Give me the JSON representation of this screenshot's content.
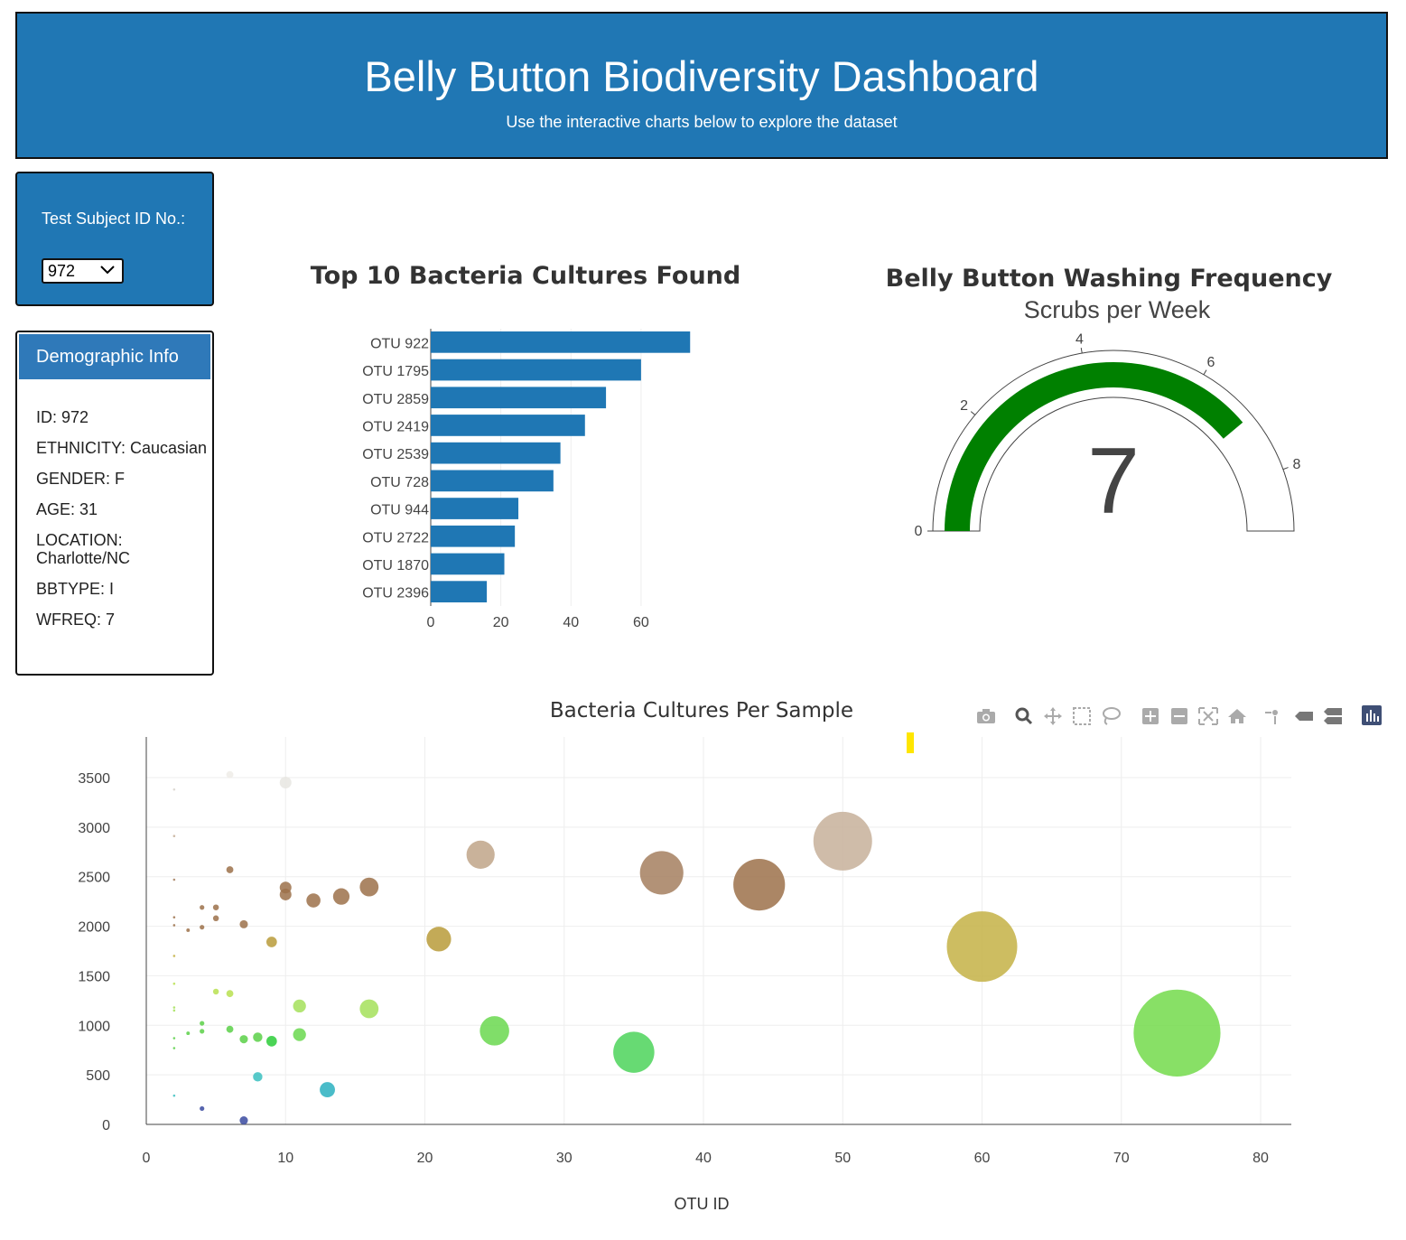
{
  "header": {
    "title": "Belly Button Biodiversity Dashboard",
    "subtitle": "Use the interactive charts below to explore the dataset"
  },
  "selector": {
    "label": "Test Subject ID No.:",
    "selected": "972"
  },
  "demographics": {
    "title": "Demographic Info",
    "rows": [
      "ID: 972",
      "ETHNICITY: Caucasian",
      "GENDER: F",
      "AGE: 31",
      "LOCATION: Charlotte/NC",
      "BBTYPE: I",
      "WFREQ: 7"
    ]
  },
  "colors": {
    "primary": "#2077b4",
    "bar": "#1f77b4",
    "gauge": "#008000",
    "highlight": "#ffe600"
  },
  "toolbar": {
    "icons": [
      "camera-icon",
      "zoom-icon",
      "pan-icon",
      "box-select-icon",
      "lasso-icon",
      "zoom-in-icon",
      "zoom-out-icon",
      "autoscale-icon",
      "reset-axes-icon",
      "spike-lines-icon",
      "hover-closest-icon",
      "hover-compare-icon",
      "plotly-logo-icon"
    ]
  },
  "chart_data": [
    {
      "type": "bar",
      "orientation": "horizontal",
      "title": "Top 10 Bacteria Cultures Found",
      "categories": [
        "OTU 922",
        "OTU 1795",
        "OTU 2859",
        "OTU 2419",
        "OTU 2539",
        "OTU 728",
        "OTU 944",
        "OTU 2722",
        "OTU 1870",
        "OTU 2396"
      ],
      "values": [
        74,
        60,
        50,
        44,
        37,
        35,
        25,
        24,
        21,
        16
      ],
      "xticks": [
        0,
        20,
        40,
        60
      ],
      "xlim": [
        0,
        76
      ]
    },
    {
      "type": "gauge",
      "title": "Belly Button Washing Frequency",
      "subtitle": "Scrubs per Week",
      "value": 7,
      "range": [
        0,
        9
      ],
      "ticks": [
        0,
        2,
        4,
        6,
        8
      ],
      "bar_range": [
        0,
        7
      ]
    },
    {
      "type": "scatter",
      "title": "Bacteria Cultures Per Sample",
      "xlabel": "OTU ID",
      "ylabel": "",
      "xlim": [
        0,
        82
      ],
      "ylim": [
        0,
        3800
      ],
      "xticks": [
        0,
        10,
        20,
        30,
        40,
        50,
        60,
        70,
        80
      ],
      "yticks": [
        0,
        500,
        1000,
        1500,
        2000,
        2500,
        3000,
        3500
      ],
      "points": [
        {
          "x": 74,
          "y": 922,
          "size": 74,
          "color": "#73db4b"
        },
        {
          "x": 60,
          "y": 1795,
          "size": 60,
          "color": "#c4b245"
        },
        {
          "x": 50,
          "y": 2859,
          "size": 50,
          "color": "#c7b09a"
        },
        {
          "x": 44,
          "y": 2419,
          "size": 44,
          "color": "#9c714a"
        },
        {
          "x": 37,
          "y": 2539,
          "size": 37,
          "color": "#a57f5f"
        },
        {
          "x": 35,
          "y": 728,
          "size": 35,
          "color": "#4cd45a"
        },
        {
          "x": 25,
          "y": 944,
          "size": 25,
          "color": "#6ad84f"
        },
        {
          "x": 24,
          "y": 2722,
          "size": 24,
          "color": "#c0a488"
        },
        {
          "x": 21,
          "y": 1870,
          "size": 21,
          "color": "#b89b3a"
        },
        {
          "x": 16,
          "y": 2396,
          "size": 16,
          "color": "#9c714a"
        },
        {
          "x": 16,
          "y": 1167,
          "size": 16,
          "color": "#a4e05a"
        },
        {
          "x": 14,
          "y": 2300,
          "size": 14,
          "color": "#9c714a"
        },
        {
          "x": 13,
          "y": 350,
          "size": 13,
          "color": "#2ab0c0"
        },
        {
          "x": 12,
          "y": 2260,
          "size": 12,
          "color": "#9c714a"
        },
        {
          "x": 11,
          "y": 1195,
          "size": 11,
          "color": "#a4e05a"
        },
        {
          "x": 11,
          "y": 906,
          "size": 11,
          "color": "#6ad84f"
        },
        {
          "x": 10,
          "y": 3450,
          "size": 10,
          "color": "#e8e6e2"
        },
        {
          "x": 10,
          "y": 2390,
          "size": 10,
          "color": "#9c714a"
        },
        {
          "x": 10,
          "y": 2320,
          "size": 10,
          "color": "#9c714a"
        },
        {
          "x": 9,
          "y": 1841,
          "size": 9,
          "color": "#b89b3a"
        },
        {
          "x": 9,
          "y": 840,
          "size": 9,
          "color": "#2ccc38"
        },
        {
          "x": 8,
          "y": 880,
          "size": 8,
          "color": "#5ad048"
        },
        {
          "x": 8,
          "y": 480,
          "size": 8,
          "color": "#3ac0c0"
        },
        {
          "x": 7,
          "y": 2020,
          "size": 7,
          "color": "#9c714a"
        },
        {
          "x": 7,
          "y": 860,
          "size": 7,
          "color": "#5ad048"
        },
        {
          "x": 7,
          "y": 40,
          "size": 7,
          "color": "#3a4aa0"
        },
        {
          "x": 6,
          "y": 3530,
          "size": 6,
          "color": "#eeece8"
        },
        {
          "x": 6,
          "y": 2570,
          "size": 6,
          "color": "#9c714a"
        },
        {
          "x": 6,
          "y": 1320,
          "size": 6,
          "color": "#b8e050"
        },
        {
          "x": 6,
          "y": 960,
          "size": 6,
          "color": "#5ad048"
        },
        {
          "x": 5,
          "y": 2190,
          "size": 5,
          "color": "#9c714a"
        },
        {
          "x": 5,
          "y": 2080,
          "size": 5,
          "color": "#9c714a"
        },
        {
          "x": 5,
          "y": 1340,
          "size": 5,
          "color": "#b8e050"
        },
        {
          "x": 4,
          "y": 2190,
          "size": 4,
          "color": "#9c714a"
        },
        {
          "x": 4,
          "y": 1990,
          "size": 4,
          "color": "#9c714a"
        },
        {
          "x": 4,
          "y": 1020,
          "size": 4,
          "color": "#5ad048"
        },
        {
          "x": 4,
          "y": 940,
          "size": 4,
          "color": "#5ad048"
        },
        {
          "x": 4,
          "y": 160,
          "size": 4,
          "color": "#3a4aa0"
        },
        {
          "x": 3,
          "y": 1960,
          "size": 3,
          "color": "#9c714a"
        },
        {
          "x": 3,
          "y": 920,
          "size": 3,
          "color": "#5ad048"
        },
        {
          "x": 2,
          "y": 3380,
          "size": 2,
          "color": "#d8d4cc"
        },
        {
          "x": 2,
          "y": 2910,
          "size": 2,
          "color": "#c7b09a"
        },
        {
          "x": 2,
          "y": 2470,
          "size": 2,
          "color": "#a57f5f"
        },
        {
          "x": 2,
          "y": 2090,
          "size": 2,
          "color": "#9c714a"
        },
        {
          "x": 2,
          "y": 2010,
          "size": 2,
          "color": "#9c714a"
        },
        {
          "x": 2,
          "y": 1700,
          "size": 2,
          "color": "#c4b245"
        },
        {
          "x": 2,
          "y": 1420,
          "size": 2,
          "color": "#b8e050"
        },
        {
          "x": 2,
          "y": 1180,
          "size": 2,
          "color": "#a4e05a"
        },
        {
          "x": 2,
          "y": 1150,
          "size": 2,
          "color": "#a4e05a"
        },
        {
          "x": 2,
          "y": 870,
          "size": 2,
          "color": "#5ad048"
        },
        {
          "x": 2,
          "y": 770,
          "size": 2,
          "color": "#5ad048"
        },
        {
          "x": 2,
          "y": 290,
          "size": 2,
          "color": "#3ac0c0"
        }
      ]
    }
  ]
}
